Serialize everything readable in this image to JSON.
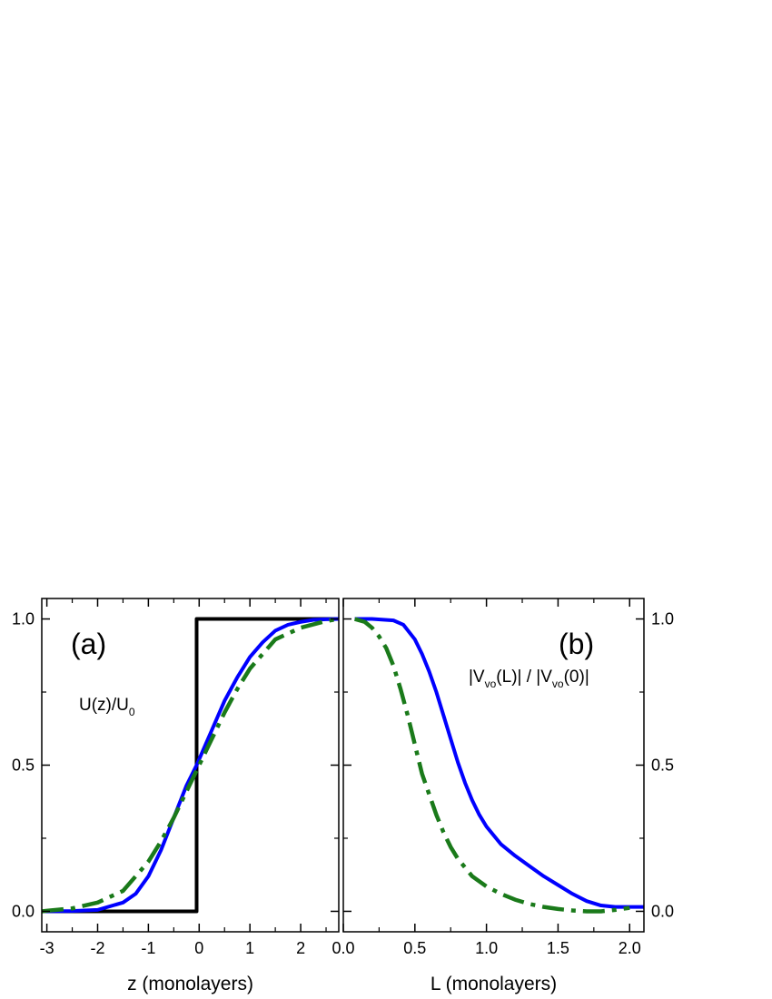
{
  "chart_data": [
    {
      "panel": "(a)",
      "type": "line",
      "xlabel": "z (monolayers)",
      "ylabel": "",
      "xlim": [
        -3.1,
        2.75
      ],
      "ylim": [
        -0.07,
        1.07
      ],
      "xticks": [
        -3,
        -2,
        -1,
        0,
        1,
        2
      ],
      "xtick_labels": [
        "-3",
        "-2",
        "-1",
        "0",
        "1",
        "2"
      ],
      "yticks": [
        0.0,
        0.5,
        1.0
      ],
      "ytick_labels": [
        "0.0",
        "0.5",
        "1.0"
      ],
      "annotation": {
        "main": "U(z)/U",
        "sub": "0"
      },
      "grid": false,
      "series": [
        {
          "color": "#000000",
          "style": "solid",
          "x": [
            -3.1,
            -0.05,
            -0.05,
            2.75
          ],
          "y": [
            0.0,
            0.0,
            1.0,
            1.0
          ]
        },
        {
          "color": "#0000ff",
          "style": "solid",
          "x": [
            -3.1,
            -2.5,
            -2.0,
            -1.5,
            -1.25,
            -1.0,
            -0.75,
            -0.5,
            -0.25,
            -0.05,
            0.0,
            0.25,
            0.5,
            0.75,
            1.0,
            1.25,
            1.5,
            1.75,
            2.0,
            2.25,
            2.5,
            2.75
          ],
          "y": [
            0.0,
            0.001,
            0.005,
            0.03,
            0.06,
            0.12,
            0.21,
            0.32,
            0.43,
            0.5,
            0.52,
            0.62,
            0.72,
            0.8,
            0.87,
            0.92,
            0.96,
            0.98,
            0.99,
            0.997,
            0.999,
            1.0
          ]
        },
        {
          "color": "#1a7a1a",
          "style": "dashdot",
          "x": [
            -3.1,
            -3.0,
            -2.5,
            -2.0,
            -1.5,
            -1.0,
            -0.75,
            -0.5,
            -0.25,
            0.0,
            0.25,
            0.5,
            0.75,
            1.0,
            1.25,
            1.5,
            2.0,
            2.5,
            2.75
          ],
          "y": [
            0.0,
            0.002,
            0.01,
            0.03,
            0.07,
            0.17,
            0.24,
            0.32,
            0.41,
            0.5,
            0.59,
            0.68,
            0.76,
            0.83,
            0.88,
            0.93,
            0.97,
            0.993,
            1.0
          ]
        }
      ]
    },
    {
      "panel": "(b)",
      "type": "line",
      "xlabel": "L (monolayers)",
      "ylabel": "",
      "xlim": [
        0.0,
        2.1
      ],
      "ylim": [
        -0.07,
        1.07
      ],
      "xticks": [
        0.0,
        0.5,
        1.0,
        1.5,
        2.0
      ],
      "xtick_labels": [
        "0.0",
        "0.5",
        "1.0",
        "1.5",
        "2.0"
      ],
      "yticks": [
        0.0,
        0.5,
        1.0
      ],
      "ytick_labels": [
        "0.0",
        "0.5",
        "1.0"
      ],
      "annotation": {
        "p1": "|V",
        "sub1": "vo",
        "p2": "(L)| / |V",
        "sub2": "vo",
        "p3": "(0)|"
      },
      "grid": false,
      "series": [
        {
          "color": "#0000ff",
          "style": "solid",
          "x": [
            0.08,
            0.2,
            0.35,
            0.42,
            0.5,
            0.55,
            0.6,
            0.65,
            0.7,
            0.75,
            0.8,
            0.85,
            0.9,
            0.95,
            1.0,
            1.05,
            1.1,
            1.2,
            1.3,
            1.4,
            1.5,
            1.6,
            1.7,
            1.8,
            1.9,
            2.0,
            2.1
          ],
          "y": [
            1.0,
            1.0,
            0.995,
            0.98,
            0.93,
            0.88,
            0.82,
            0.75,
            0.67,
            0.59,
            0.51,
            0.44,
            0.38,
            0.33,
            0.29,
            0.26,
            0.23,
            0.19,
            0.155,
            0.12,
            0.09,
            0.06,
            0.035,
            0.02,
            0.015,
            0.015,
            0.015
          ]
        },
        {
          "color": "#1a7a1a",
          "style": "dashdot",
          "x": [
            0.08,
            0.15,
            0.2,
            0.25,
            0.3,
            0.35,
            0.4,
            0.45,
            0.5,
            0.55,
            0.6,
            0.65,
            0.7,
            0.75,
            0.8,
            0.9,
            1.0,
            1.1,
            1.2,
            1.3,
            1.4,
            1.5,
            1.6,
            1.7,
            1.8,
            1.9,
            2.0
          ],
          "y": [
            1.0,
            0.99,
            0.97,
            0.94,
            0.9,
            0.84,
            0.76,
            0.67,
            0.57,
            0.47,
            0.4,
            0.33,
            0.27,
            0.22,
            0.18,
            0.12,
            0.085,
            0.06,
            0.04,
            0.025,
            0.015,
            0.008,
            0.003,
            0.0,
            0.0,
            0.005,
            0.012
          ]
        }
      ]
    }
  ]
}
